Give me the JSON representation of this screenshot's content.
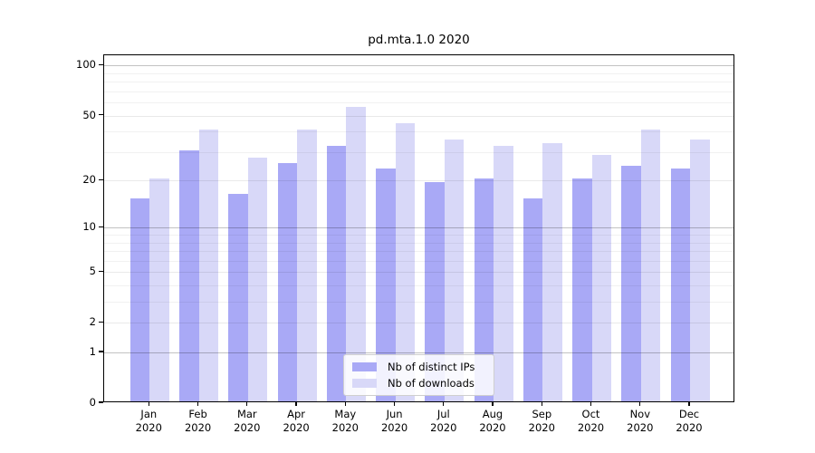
{
  "figure": {
    "title": "pd.mta.1.0 2020",
    "background_color": "#ffffff"
  },
  "axes": {
    "y_tick_labels": [
      "0",
      "1",
      "2",
      "5",
      "10",
      "20",
      "50",
      "100"
    ],
    "x_tick_year": "2020"
  },
  "legend": {
    "items": [
      {
        "label": "Nb of distinct IPs",
        "color": "#a9a9f6"
      },
      {
        "label": "Nb of downloads",
        "color": "#d8d8f8"
      }
    ]
  },
  "chart_data": {
    "type": "bar",
    "title": "pd.mta.1.0 2020",
    "categories": [
      "Jan 2020",
      "Feb 2020",
      "Mar 2020",
      "Apr 2020",
      "May 2020",
      "Jun 2020",
      "Jul 2020",
      "Aug 2020",
      "Sep 2020",
      "Oct 2020",
      "Nov 2020",
      "Dec 2020"
    ],
    "months": [
      "Jan",
      "Feb",
      "Mar",
      "Apr",
      "May",
      "Jun",
      "Jul",
      "Aug",
      "Sep",
      "Oct",
      "Nov",
      "Dec"
    ],
    "year": "2020",
    "series": [
      {
        "name": "Nb of distinct IPs",
        "color": "#a9a9f6",
        "values": [
          15,
          30,
          16,
          25,
          32,
          23,
          19,
          20,
          15,
          20,
          24,
          23
        ]
      },
      {
        "name": "Nb of downloads",
        "color": "#d8d8f8",
        "values": [
          20,
          40,
          27,
          40,
          55,
          44,
          35,
          32,
          33,
          28,
          40,
          35
        ]
      }
    ],
    "yscale": "log10(1+x)",
    "yticks": [
      0,
      1,
      2,
      5,
      10,
      20,
      50,
      100
    ],
    "yticks_major_grid": [
      1,
      10,
      100
    ],
    "yticks_mid_grid": [
      2,
      5,
      20,
      50
    ],
    "yticks_minor_grid": [
      3,
      4,
      6,
      7,
      8,
      9,
      30,
      40,
      60,
      70,
      80,
      90
    ],
    "ylim": [
      0,
      115
    ],
    "xlabel": "",
    "ylabel": "",
    "grid": "both (drawn above bars)",
    "legend_position": "lower center"
  }
}
